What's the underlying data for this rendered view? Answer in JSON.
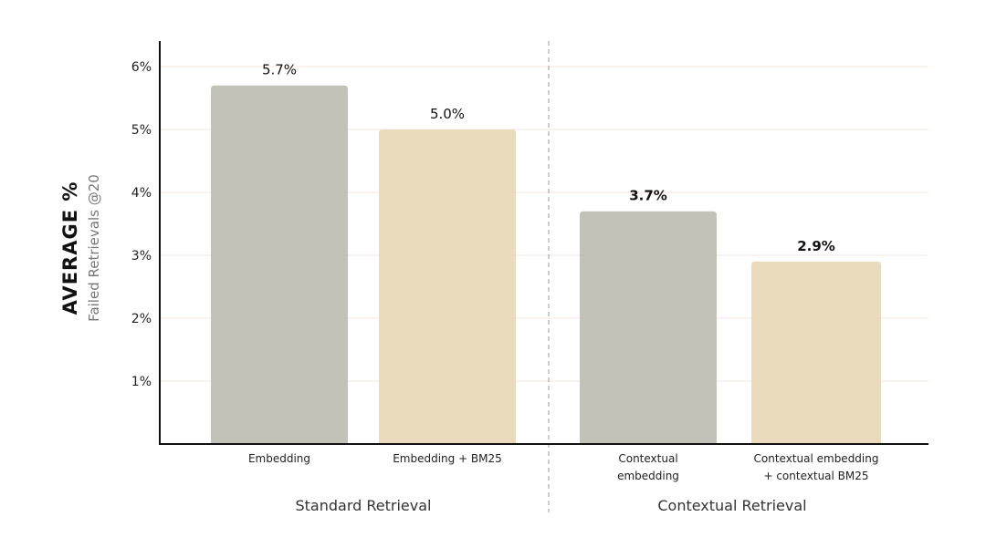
{
  "chart_data": {
    "type": "bar",
    "ylabel": "AVERAGE %",
    "ylabel_sub": "Failed Retrievals @20",
    "ylim": [
      0,
      6
    ],
    "yticks": [
      1,
      2,
      3,
      4,
      5,
      6
    ],
    "ytick_labels": [
      "1%",
      "2%",
      "3%",
      "4%",
      "5%",
      "6%"
    ],
    "grid": true,
    "categories": [
      "Embedding",
      "Embedding + BM25",
      "Contextual embedding",
      "Contextual embedding + contextual BM25"
    ],
    "category_lines": [
      [
        "Embedding"
      ],
      [
        "Embedding + BM25"
      ],
      [
        "Contextual",
        "embedding"
      ],
      [
        "Contextual embedding",
        "+ contextual BM25"
      ]
    ],
    "values": [
      5.7,
      5.0,
      3.7,
      2.9
    ],
    "data_labels": [
      "5.7%",
      "5.0%",
      "3.7%",
      "2.9%"
    ],
    "bar_colors": [
      "#c2c2b8",
      "#e9dbbb",
      "#c2c2b8",
      "#e9dbbb"
    ],
    "groups": [
      {
        "label": "Standard Retrieval",
        "categories": [
          0,
          1
        ]
      },
      {
        "label": "Contextual Retrieval",
        "categories": [
          2,
          3
        ]
      }
    ],
    "grid_color": "#f3e4dc"
  }
}
